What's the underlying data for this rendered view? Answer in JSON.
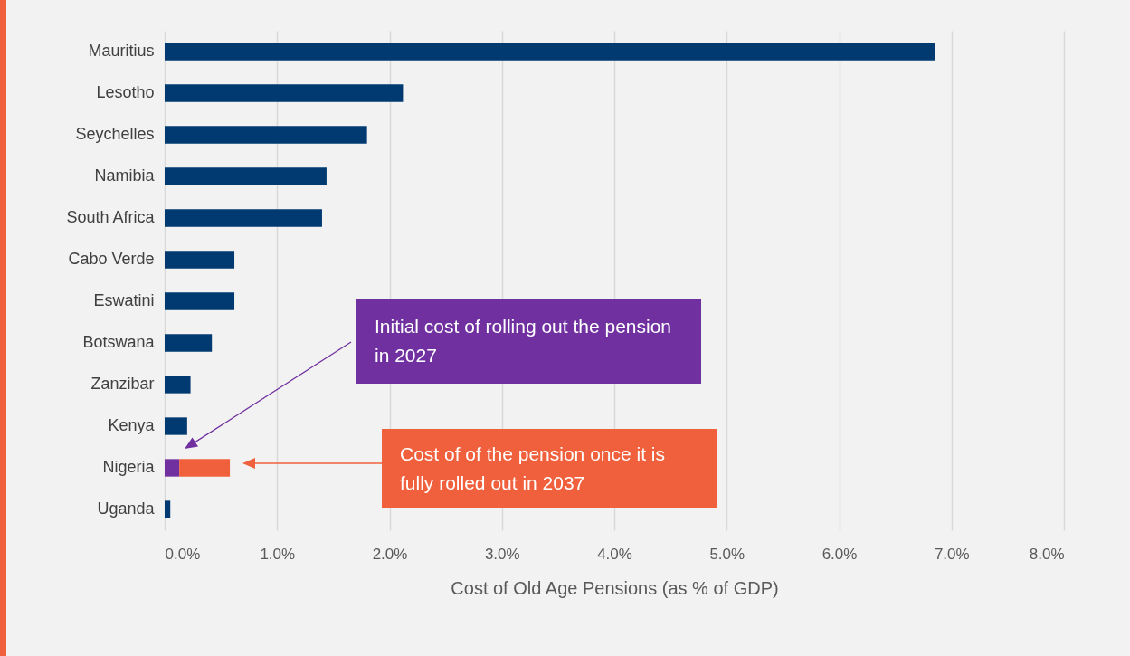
{
  "chart_data": {
    "type": "bar",
    "orientation": "horizontal",
    "stacked": true,
    "xlabel": "Cost of Old Age Pensions (as % of GDP)",
    "categories": [
      "Mauritius",
      "Lesotho",
      "Seychelles",
      "Namibia",
      "South Africa",
      "Cabo Verde",
      "Eswatini",
      "Botswana",
      "Zanzibar",
      "Kenya",
      "Nigeria",
      "Uganda"
    ],
    "series": [
      {
        "colors": [
          "#003a70",
          "#003a70",
          "#003a70",
          "#003a70",
          "#003a70",
          "#003a70",
          "#003a70",
          "#003a70",
          "#003a70",
          "#003a70",
          "#7030a0",
          "#003a70"
        ],
        "values": [
          6.85,
          2.12,
          1.8,
          1.44,
          1.4,
          0.62,
          0.62,
          0.42,
          0.23,
          0.2,
          0.13,
          0.05
        ]
      },
      {
        "color": "#f0603c",
        "values": [
          null,
          null,
          null,
          null,
          null,
          null,
          null,
          null,
          null,
          null,
          0.45,
          null
        ]
      }
    ],
    "xlim": [
      0,
      8
    ],
    "xticks": [
      {
        "value": 0,
        "label": "0.0%"
      },
      {
        "value": 1,
        "label": "1.0%"
      },
      {
        "value": 2,
        "label": "2.0%"
      },
      {
        "value": 3,
        "label": "3.0%"
      },
      {
        "value": 4,
        "label": "4.0%"
      },
      {
        "value": 5,
        "label": "5.0%"
      },
      {
        "value": 6,
        "label": "6.0%"
      },
      {
        "value": 7,
        "label": "7.0%"
      },
      {
        "value": 8,
        "label": "8.0%"
      }
    ],
    "grid": "x",
    "annotations": [
      "Initial cost of rolling out the pension in 2027",
      "Cost of of the pension once it is fully rolled out in 2037"
    ]
  }
}
